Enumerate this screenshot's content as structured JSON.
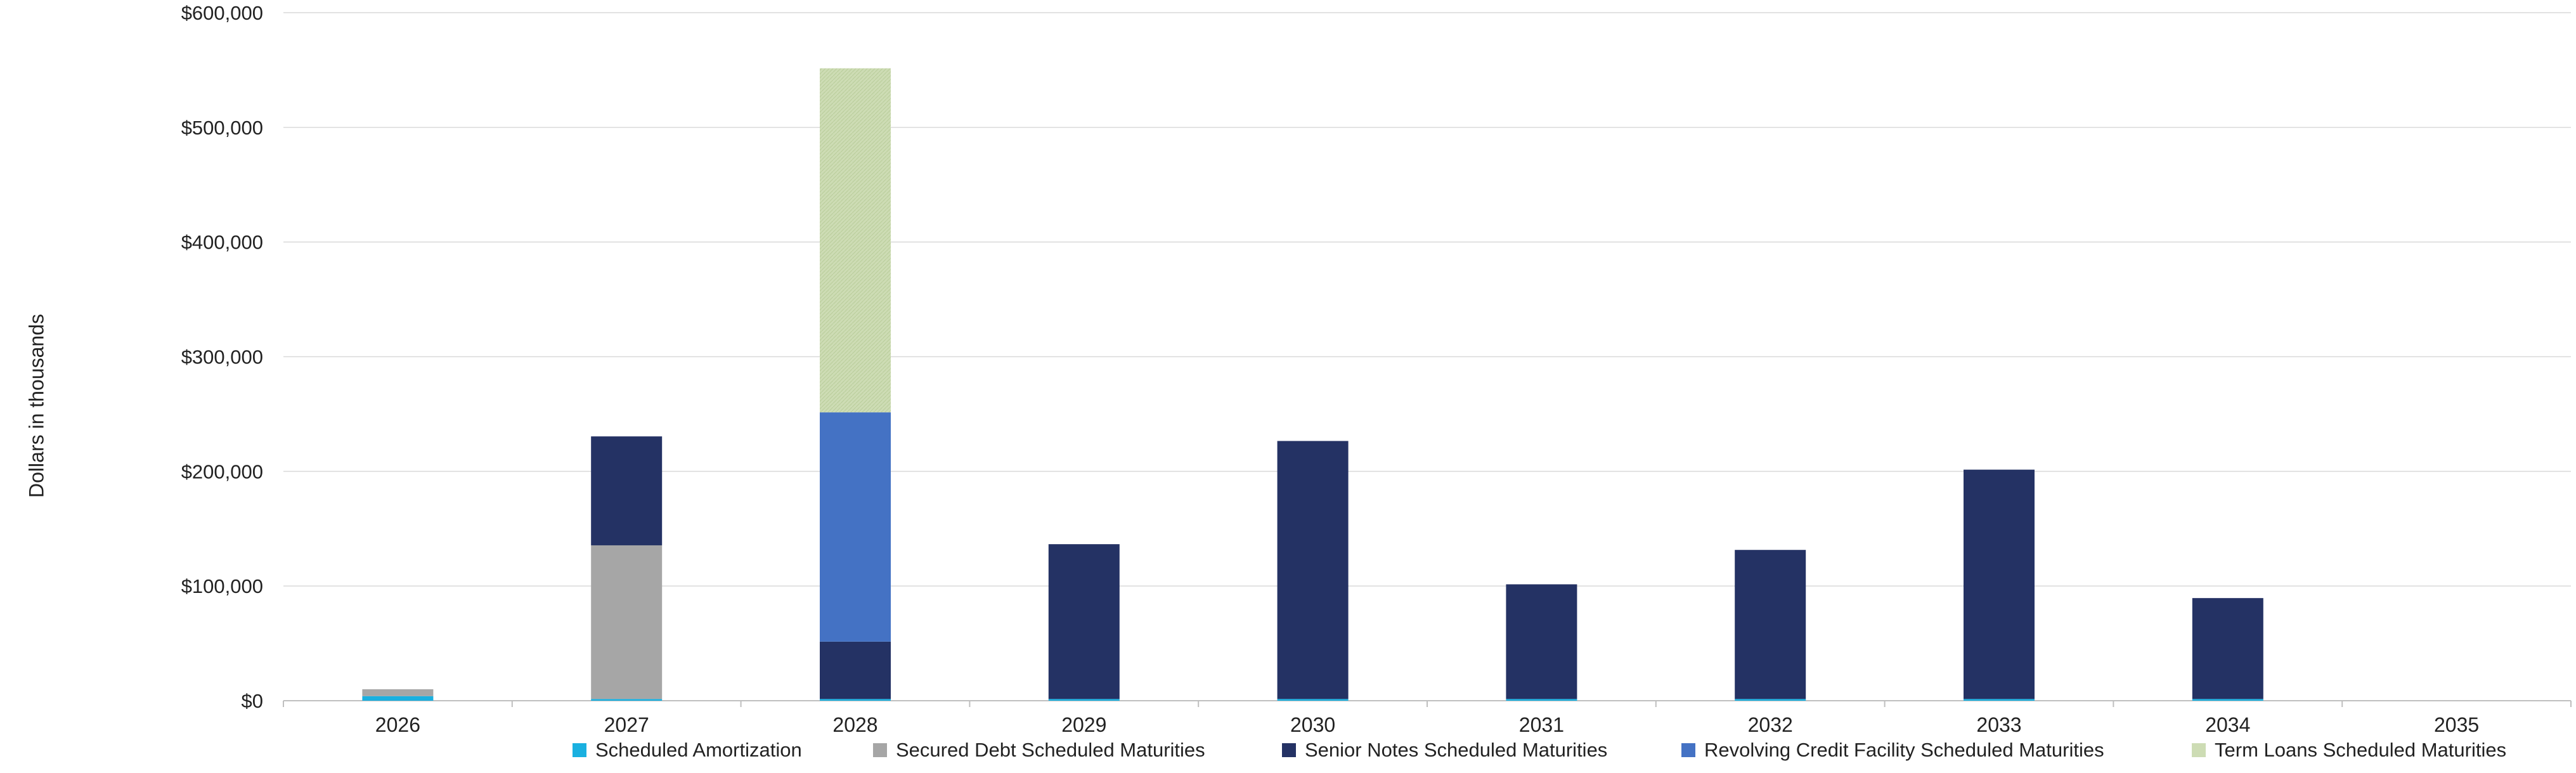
{
  "chart_data": {
    "type": "bar",
    "stacked": true,
    "ylabel": "Dollars in thousands",
    "ylim": [
      0,
      600000
    ],
    "yticks": [
      "$0",
      "$100,000",
      "$200,000",
      "$300,000",
      "$400,000",
      "$500,000",
      "$600,000"
    ],
    "ytick_values": [
      0,
      100000,
      200000,
      300000,
      400000,
      500000,
      600000
    ],
    "categories": [
      "2026",
      "2027",
      "2028",
      "2029",
      "2030",
      "2031",
      "2032",
      "2033",
      "2034",
      "2035"
    ],
    "grid": true,
    "legend_position": "bottom",
    "series": [
      {
        "name": "Scheduled Amortization",
        "color": "#1ab0e0",
        "values": [
          4000,
          1500,
          1500,
          1500,
          1500,
          1500,
          1500,
          1500,
          1500,
          0
        ]
      },
      {
        "name": "Secured Debt Scheduled Maturities",
        "color": "#a6a6a6",
        "values": [
          6000,
          134000,
          0,
          0,
          0,
          0,
          0,
          0,
          0,
          0
        ]
      },
      {
        "name": "Senior Notes Scheduled Maturities",
        "color": "#243264",
        "values": [
          0,
          95000,
          50000,
          135000,
          225000,
          100000,
          130000,
          200000,
          88000,
          0
        ]
      },
      {
        "name": "Revolving Credit Facility Scheduled Maturities",
        "color": "#4472c4",
        "values": [
          0,
          0,
          200000,
          0,
          0,
          0,
          0,
          0,
          0,
          0
        ]
      },
      {
        "name": "Term Loans Scheduled Maturities",
        "color": "#cddcb4",
        "values": [
          0,
          0,
          300000,
          0,
          0,
          0,
          0,
          0,
          0,
          0
        ]
      }
    ]
  }
}
